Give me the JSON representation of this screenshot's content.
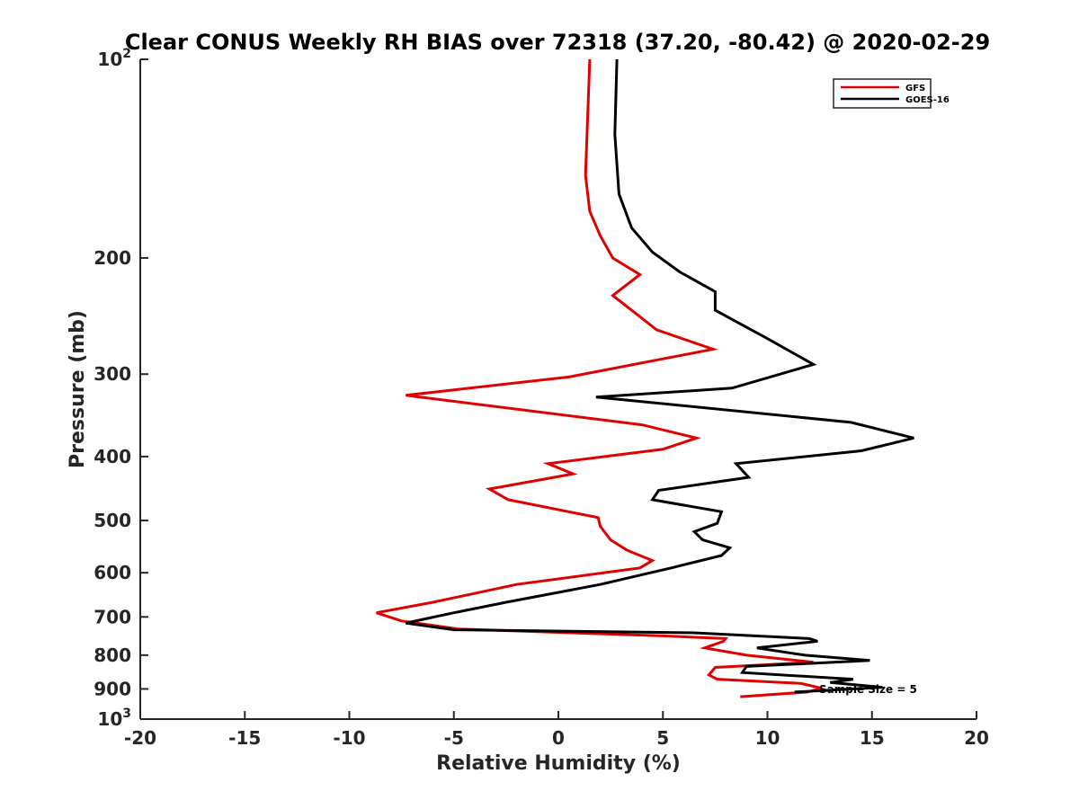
{
  "chart_data": {
    "type": "line",
    "title": "Clear CONUS Weekly RH BIAS over 72318 (37.20, -80.42) @ 2020-02-29",
    "xlabel": "Relative Humidity (%)",
    "ylabel": "Pressure (mb)",
    "xlim": [
      -20,
      20
    ],
    "ylim": [
      100,
      1000
    ],
    "yscale": "log",
    "y_reversed": true,
    "grid": false,
    "legend_position": "top-right",
    "x_ticks": [
      -20,
      -15,
      -10,
      -5,
      0,
      5,
      10,
      15,
      20
    ],
    "x_tick_labels": [
      "-20",
      "-15",
      "-10",
      "-5",
      "0",
      "5",
      "10",
      "15",
      "20"
    ],
    "y_ticks": [
      {
        "value": 100,
        "base": "10",
        "exp": "2"
      },
      {
        "value": 200,
        "label": "200"
      },
      {
        "value": 300,
        "label": "300"
      },
      {
        "value": 400,
        "label": "400"
      },
      {
        "value": 500,
        "label": "500"
      },
      {
        "value": 600,
        "label": "600"
      },
      {
        "value": 700,
        "label": "700"
      },
      {
        "value": 800,
        "label": "800"
      },
      {
        "value": 900,
        "label": "900"
      },
      {
        "value": 1000,
        "base": "10",
        "exp": "3"
      }
    ],
    "annotation": "Sample Size = 5",
    "series": [
      {
        "name": "GFS",
        "color": "#e00000",
        "points": [
          [
            1.5,
            100
          ],
          [
            1.3,
            150
          ],
          [
            1.5,
            170
          ],
          [
            2.0,
            185
          ],
          [
            2.6,
            200
          ],
          [
            3.9,
            212
          ],
          [
            2.6,
            228
          ],
          [
            4.7,
            257
          ],
          [
            7.4,
            275
          ],
          [
            0.5,
            303
          ],
          [
            -7.3,
            323
          ],
          [
            4.0,
            358
          ],
          [
            6.6,
            375
          ],
          [
            5.0,
            390
          ],
          [
            -0.5,
            410
          ],
          [
            0.7,
            425
          ],
          [
            -3.3,
            448
          ],
          [
            -2.4,
            465
          ],
          [
            1.9,
            495
          ],
          [
            2.0,
            510
          ],
          [
            2.5,
            535
          ],
          [
            3.3,
            555
          ],
          [
            4.5,
            575
          ],
          [
            3.9,
            590
          ],
          [
            -2.0,
            625
          ],
          [
            -6.0,
            665
          ],
          [
            -8.7,
            690
          ],
          [
            -7.5,
            710
          ],
          [
            -4.8,
            730
          ],
          [
            5.0,
            748
          ],
          [
            8.0,
            755
          ],
          [
            7.9,
            762
          ],
          [
            7.0,
            780
          ],
          [
            9.0,
            800
          ],
          [
            12.2,
            820
          ],
          [
            7.5,
            835
          ],
          [
            7.2,
            857
          ],
          [
            7.6,
            870
          ],
          [
            11.6,
            883
          ],
          [
            12.6,
            898
          ],
          [
            11.9,
            910
          ],
          [
            8.7,
            925
          ]
        ]
      },
      {
        "name": "GOES-16",
        "color": "#000000",
        "points": [
          [
            2.8,
            100
          ],
          [
            2.7,
            130
          ],
          [
            2.9,
            160
          ],
          [
            3.5,
            180
          ],
          [
            4.5,
            196
          ],
          [
            5.8,
            210
          ],
          [
            7.5,
            225
          ],
          [
            7.5,
            240
          ],
          [
            10.0,
            265
          ],
          [
            12.2,
            290
          ],
          [
            8.3,
            315
          ],
          [
            1.8,
            325
          ],
          [
            14.0,
            355
          ],
          [
            17.0,
            375
          ],
          [
            14.5,
            392
          ],
          [
            8.5,
            410
          ],
          [
            9.1,
            430
          ],
          [
            4.8,
            450
          ],
          [
            4.5,
            465
          ],
          [
            7.8,
            485
          ],
          [
            7.6,
            505
          ],
          [
            6.5,
            520
          ],
          [
            6.9,
            535
          ],
          [
            8.2,
            550
          ],
          [
            7.8,
            565
          ],
          [
            5.4,
            590
          ],
          [
            2.0,
            625
          ],
          [
            -2.5,
            665
          ],
          [
            -5.0,
            690
          ],
          [
            -7.3,
            715
          ],
          [
            -5.0,
            732
          ],
          [
            6.5,
            740
          ],
          [
            12.0,
            755
          ],
          [
            12.4,
            762
          ],
          [
            9.5,
            780
          ],
          [
            11.8,
            800
          ],
          [
            14.9,
            815
          ],
          [
            9.0,
            832
          ],
          [
            8.8,
            850
          ],
          [
            14.1,
            870
          ],
          [
            13.0,
            880
          ],
          [
            15.5,
            895
          ],
          [
            11.3,
            910
          ]
        ]
      }
    ]
  }
}
